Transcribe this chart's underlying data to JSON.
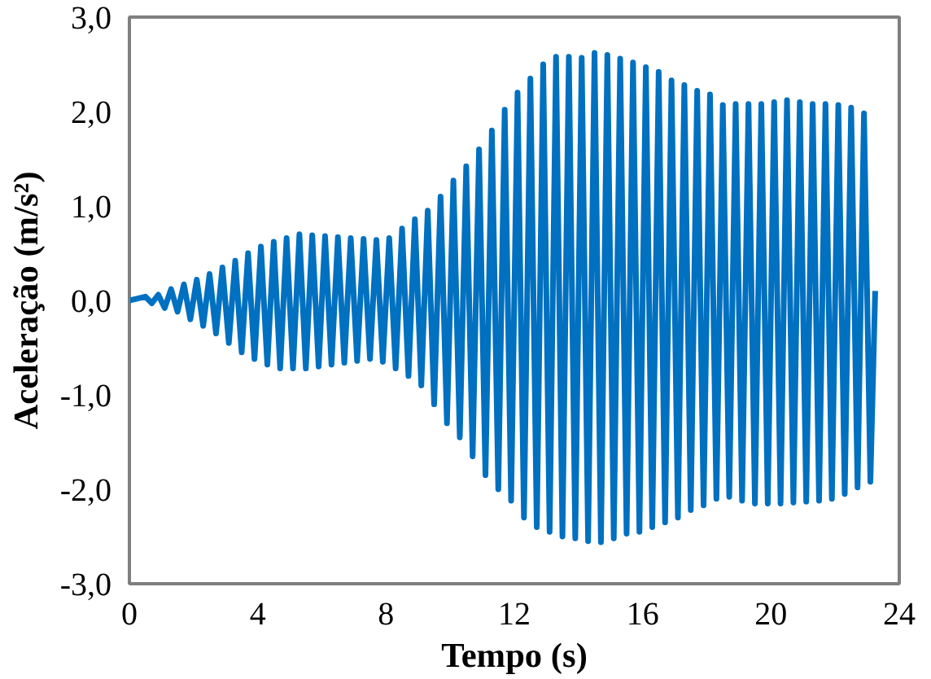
{
  "chart_data": {
    "type": "line",
    "xlabel": "Tempo (s)",
    "ylabel": "Aceleração (m/s²)",
    "xlim": [
      0,
      24
    ],
    "xticks": [
      0,
      4,
      8,
      12,
      16,
      20,
      24
    ],
    "ylim": [
      -3,
      3
    ],
    "yticks": [
      {
        "value": -3,
        "label": "-3,0"
      },
      {
        "value": -2,
        "label": "-2,0"
      },
      {
        "value": -1,
        "label": "-1,0"
      },
      {
        "value": 0,
        "label": "0,0"
      },
      {
        "value": 1,
        "label": "1,0"
      },
      {
        "value": 2,
        "label": "2,0"
      },
      {
        "value": 3,
        "label": "3,0"
      }
    ],
    "marker": "none",
    "line_style": "solid",
    "series": [
      {
        "color": "#0070c0",
        "x": [
          0,
          0.5,
          0.7,
          0.9,
          1.1,
          1.3,
          1.5,
          1.7,
          1.9,
          2.1,
          2.3,
          2.5,
          2.7,
          2.9,
          3.1,
          3.3,
          3.5,
          3.7,
          3.9,
          4.1,
          4.3,
          4.5,
          4.7,
          4.9,
          5.1,
          5.3,
          5.5,
          5.7,
          5.9,
          6.1,
          6.3,
          6.5,
          6.7,
          6.9,
          7.1,
          7.3,
          7.5,
          7.7,
          7.9,
          8.1,
          8.3,
          8.5,
          8.7,
          8.9,
          9.1,
          9.3,
          9.5,
          9.7,
          9.9,
          10.1,
          10.3,
          10.5,
          10.7,
          10.9,
          11.1,
          11.3,
          11.5,
          11.7,
          11.9,
          12.1,
          12.3,
          12.5,
          12.7,
          12.9,
          13.1,
          13.3,
          13.5,
          13.7,
          13.9,
          14.1,
          14.3,
          14.5,
          14.7,
          14.9,
          15.1,
          15.3,
          15.5,
          15.7,
          15.9,
          16.1,
          16.3,
          16.5,
          16.7,
          16.9,
          17.1,
          17.3,
          17.5,
          17.7,
          17.9,
          18.1,
          18.3,
          18.5,
          18.7,
          18.9,
          19.1,
          19.3,
          19.5,
          19.7,
          19.9,
          20.1,
          20.3,
          20.5,
          20.7,
          20.9,
          21.1,
          21.3,
          21.5,
          21.7,
          21.9,
          22.1,
          22.3,
          22.5,
          22.7,
          22.9,
          23.1,
          23.25
        ],
        "values": [
          0,
          0.04,
          -0.03,
          0.06,
          -0.08,
          0.12,
          -0.12,
          0.17,
          -0.2,
          0.22,
          -0.27,
          0.28,
          -0.35,
          0.35,
          -0.45,
          0.42,
          -0.55,
          0.5,
          -0.62,
          0.57,
          -0.68,
          0.62,
          -0.72,
          0.66,
          -0.72,
          0.7,
          -0.72,
          0.69,
          -0.7,
          0.68,
          -0.68,
          0.67,
          -0.66,
          0.66,
          -0.64,
          0.65,
          -0.62,
          0.64,
          -0.65,
          0.66,
          -0.72,
          0.76,
          -0.8,
          0.86,
          -0.9,
          0.95,
          -1.1,
          1.1,
          -1.3,
          1.27,
          -1.45,
          1.42,
          -1.65,
          1.6,
          -1.85,
          1.8,
          -2.0,
          2.02,
          -2.12,
          2.2,
          -2.3,
          2.35,
          -2.4,
          2.5,
          -2.45,
          2.58,
          -2.5,
          2.58,
          -2.52,
          2.57,
          -2.55,
          2.62,
          -2.56,
          2.6,
          -2.52,
          2.56,
          -2.47,
          2.52,
          -2.45,
          2.47,
          -2.4,
          2.42,
          -2.35,
          2.33,
          -2.3,
          2.28,
          -2.22,
          2.22,
          -2.17,
          2.18,
          -2.1,
          2.07,
          -2.08,
          2.08,
          -2.12,
          2.08,
          -2.15,
          2.08,
          -2.15,
          2.1,
          -2.15,
          2.12,
          -2.14,
          2.1,
          -2.13,
          2.08,
          -2.12,
          2.08,
          -2.1,
          2.07,
          -2.05,
          2.04,
          -1.98,
          1.98,
          -1.92,
          0.1
        ]
      }
    ]
  }
}
